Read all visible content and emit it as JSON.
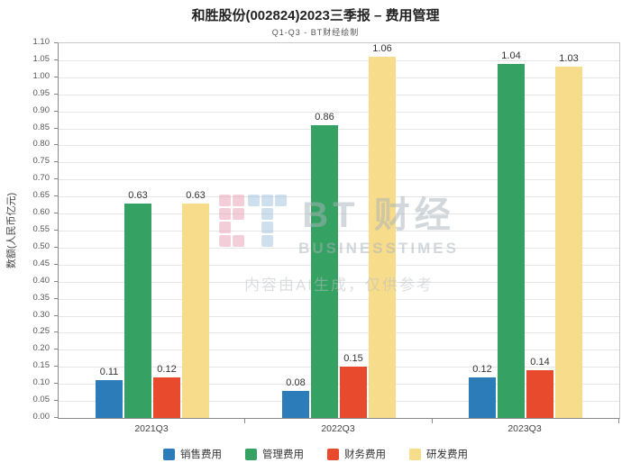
{
  "title": "和胜股份(002824)2023三季报 – 费用管理",
  "subtitle": "Q1-Q3 - BT财经绘制",
  "watermark": {
    "logo_text": "BT 财经",
    "logo_subtext": "BUSINESSTIMES",
    "ai_note": "内容由AI生成，仅供参考"
  },
  "chart_data": {
    "type": "bar",
    "title": "和胜股份(002824)2023三季报 – 费用管理",
    "subtitle": "Q1-Q3 - BT财经绘制",
    "categories": [
      "2021Q3",
      "2022Q3",
      "2023Q3"
    ],
    "series": [
      {
        "name": "销售费用",
        "color": "#2b7cb9",
        "values": [
          0.11,
          0.08,
          0.12
        ]
      },
      {
        "name": "管理费用",
        "color": "#35a263",
        "values": [
          0.63,
          0.86,
          1.04
        ]
      },
      {
        "name": "财务费用",
        "color": "#e74a2c",
        "values": [
          0.12,
          0.15,
          0.14
        ]
      },
      {
        "name": "研发费用",
        "color": "#f6dc8b",
        "values": [
          0.63,
          1.06,
          1.03
        ]
      }
    ],
    "xlabel": "",
    "ylabel": "数额(人民币亿元)",
    "ylim": [
      0,
      1.1
    ],
    "ytick_step": 0.05,
    "grid": true,
    "legend_position": "bottom"
  }
}
